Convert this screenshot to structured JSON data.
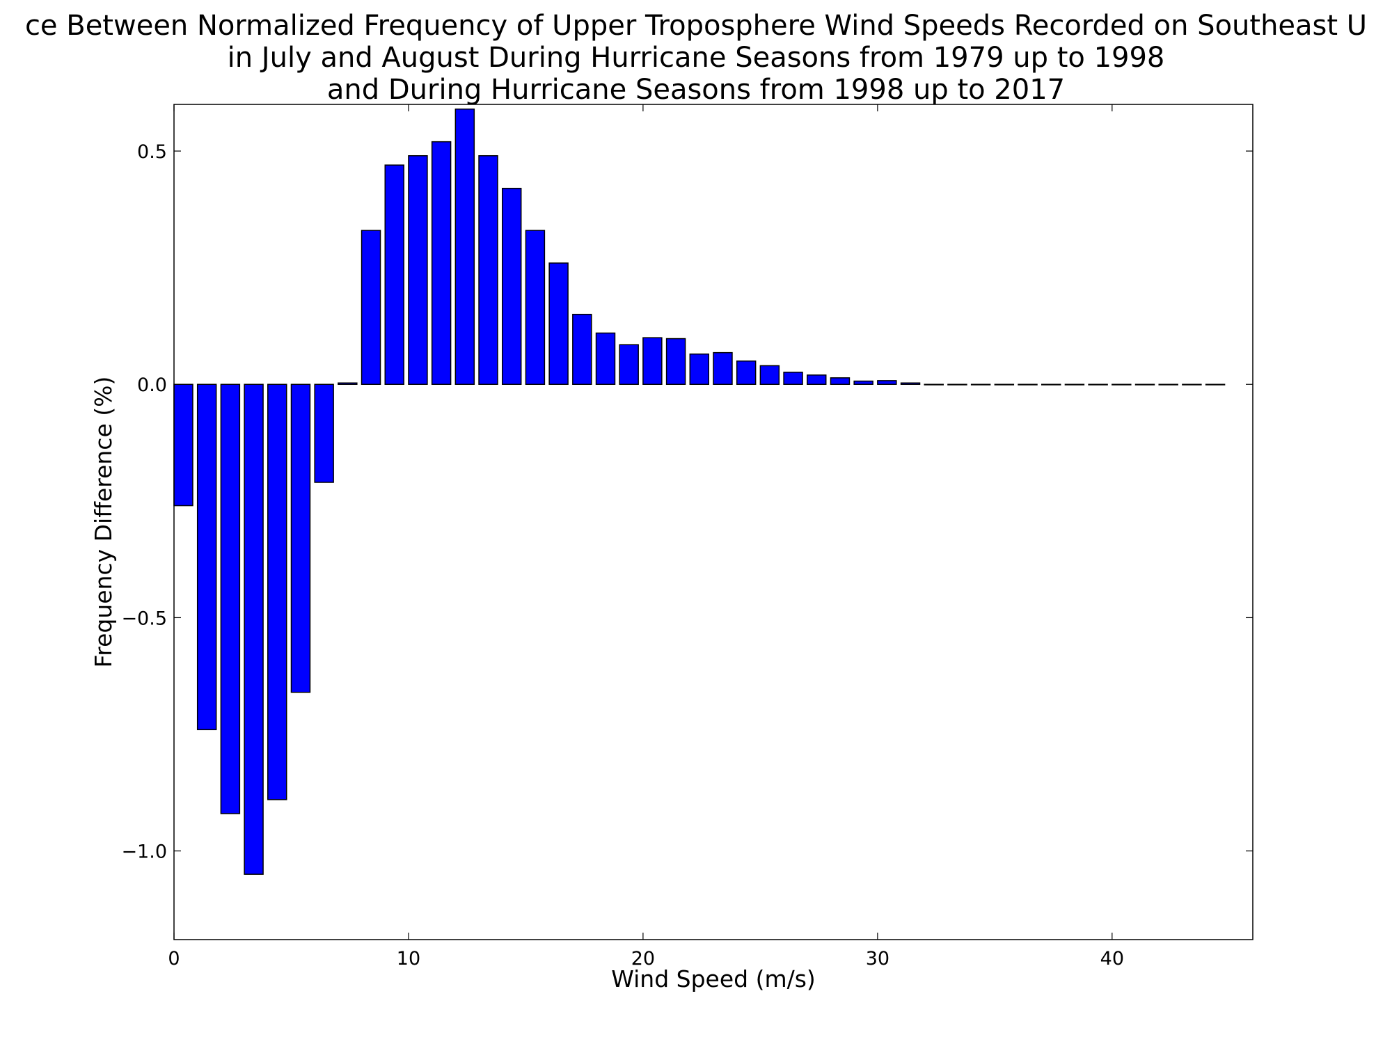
{
  "chart_data": {
    "type": "bar",
    "title_lines": [
      "ce Between Normalized Frequency of Upper Troposphere Wind Speeds Recorded on Southeast U",
      "in July and August During Hurricane Seasons from 1979 up to 1998",
      "and During Hurricane Seasons from 1998 up to 2017"
    ],
    "xlabel": "Wind Speed (m/s)",
    "ylabel": "Frequency Difference (%)",
    "xlim": [
      0,
      46
    ],
    "ylim": [
      -1.19,
      0.6
    ],
    "bar_width": 0.8,
    "xticks": [
      0,
      10,
      20,
      30,
      40
    ],
    "xtick_labels": [
      "0",
      "10",
      "20",
      "30",
      "40"
    ],
    "yticks": [
      0.5,
      0.0,
      -0.5,
      -1.0
    ],
    "ytick_labels": [
      "0.5",
      "0.0",
      "−0.5",
      "−1.0"
    ],
    "grid": false,
    "legend": "none",
    "bar_color": "#0000ff",
    "x": [
      0,
      1,
      2,
      3,
      4,
      5,
      6,
      7,
      8,
      9,
      10,
      11,
      12,
      13,
      14,
      15,
      16,
      17,
      18,
      19,
      20,
      21,
      22,
      23,
      24,
      25,
      26,
      27,
      28,
      29,
      30,
      31,
      32,
      33,
      34,
      35,
      36,
      37,
      38,
      39,
      40,
      41,
      42,
      43,
      44
    ],
    "values": [
      -0.26,
      -0.74,
      -0.92,
      -1.05,
      -0.89,
      -0.66,
      -0.21,
      0.003,
      0.33,
      0.47,
      0.49,
      0.52,
      0.59,
      0.49,
      0.42,
      0.33,
      0.26,
      0.15,
      0.11,
      0.085,
      0.1,
      0.098,
      0.065,
      0.068,
      0.05,
      0.04,
      0.026,
      0.02,
      0.014,
      0.007,
      0.008,
      0.003,
      -0.001,
      -0.001,
      -0.001,
      -0.001,
      -0.001,
      -0.001,
      -0.001,
      -0.001,
      -0.001,
      -0.001,
      -0.001,
      -0.001,
      -0.001
    ]
  }
}
